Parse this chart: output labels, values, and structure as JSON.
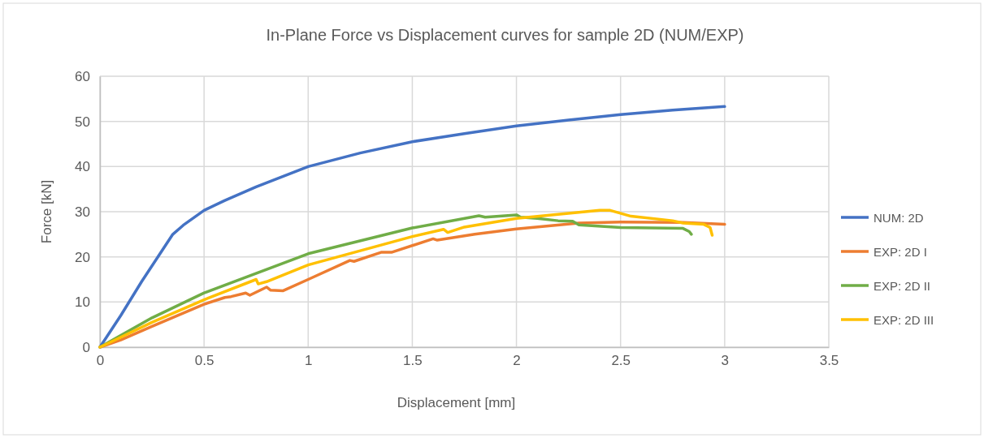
{
  "chart_data": {
    "type": "line",
    "title": "In-Plane Force vs Displacement curves for sample 2D (NUM/EXP)",
    "xlabel": "Displacement [mm]",
    "ylabel": "Force [kN]",
    "xlim": [
      0,
      3.5
    ],
    "xticks": [
      0,
      0.5,
      1,
      1.5,
      2,
      2.5,
      3,
      3.5
    ],
    "ylim": [
      0,
      60
    ],
    "yticks": [
      0,
      10,
      20,
      30,
      40,
      50,
      60
    ],
    "grid": true,
    "legend": "right",
    "marker": "none",
    "line_style": "solid",
    "series": [
      {
        "name": "NUM: 2D",
        "color": "#4472c4",
        "x": [
          0,
          0.1,
          0.2,
          0.3,
          0.35,
          0.4,
          0.5,
          0.6,
          0.75,
          1,
          1.25,
          1.5,
          1.75,
          2,
          2.25,
          2.5,
          2.75,
          3
        ],
        "values": [
          0,
          7,
          14.5,
          21.5,
          25,
          27,
          30.3,
          32.5,
          35.5,
          40,
          43,
          45.5,
          47.3,
          49,
          50.3,
          51.5,
          52.5,
          53.3
        ]
      },
      {
        "name": "EXP: 2D I",
        "color": "#ed7d31",
        "x": [
          0,
          0.1,
          0.25,
          0.5,
          0.6,
          0.63,
          0.7,
          0.72,
          0.8,
          0.82,
          0.88,
          1,
          1.2,
          1.22,
          1.35,
          1.4,
          1.6,
          1.62,
          1.8,
          2,
          2.3,
          2.5,
          2.8,
          3
        ],
        "values": [
          0,
          1.6,
          4.6,
          9.5,
          11,
          11.2,
          12,
          11.5,
          13.3,
          12.6,
          12.5,
          15,
          19.2,
          19,
          21,
          21,
          24,
          23.7,
          25,
          26.2,
          27.5,
          27.7,
          27.6,
          27.2
        ]
      },
      {
        "name": "EXP: 2D II",
        "color": "#70ad47",
        "x": [
          0,
          0.1,
          0.25,
          0.5,
          1,
          1.5,
          1.82,
          1.85,
          2,
          2.02,
          2.1,
          2.2,
          2.27,
          2.3,
          2.5,
          2.8,
          2.83,
          2.84
        ],
        "values": [
          0,
          2.6,
          6.5,
          12,
          20.7,
          26.4,
          29.1,
          28.8,
          29.3,
          28.8,
          28.5,
          28,
          27.9,
          27.1,
          26.5,
          26.3,
          25.6,
          25
        ]
      },
      {
        "name": "EXP: 2D III",
        "color": "#ffc000",
        "x": [
          0,
          0.1,
          0.25,
          0.5,
          0.75,
          0.76,
          0.8,
          1,
          1.5,
          1.65,
          1.67,
          1.75,
          2,
          2.4,
          2.45,
          2.55,
          2.75,
          2.8,
          2.9,
          2.93,
          2.94
        ],
        "values": [
          0,
          2.2,
          5.5,
          10.5,
          15,
          14,
          14.5,
          18.2,
          24.5,
          26.1,
          25.4,
          26.6,
          28.5,
          30.3,
          30.3,
          29,
          28,
          27.5,
          27.2,
          26.5,
          24.8
        ]
      }
    ]
  }
}
